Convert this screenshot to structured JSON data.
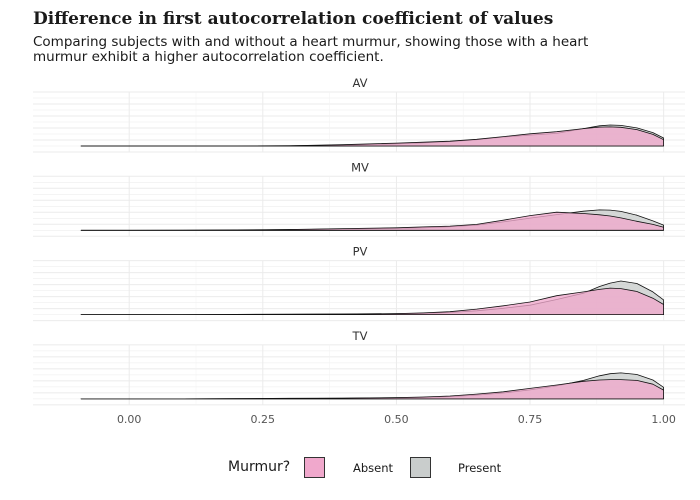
{
  "title": "Difference in first autocorrelation coefficient of values",
  "subtitle": "Comparing subjects with and without a heart murmur, showing those with a heart murmur exhibit a higher autocorrelation coefficient.",
  "legend": {
    "title": "Murmur?",
    "items": [
      {
        "label": "Absent",
        "color": "#f0a8cc"
      },
      {
        "label": "Present",
        "color": "#c9cdcc"
      }
    ]
  },
  "chart_data": {
    "type": "area",
    "chart_kind": "faceted density ridgeline",
    "x_ticks": [
      0.0,
      0.25,
      0.5,
      0.75,
      1.0
    ],
    "x_tick_labels": [
      "0.00",
      "0.25",
      "0.50",
      "0.75",
      "1.00"
    ],
    "xlim": [
      -0.18,
      1.04
    ],
    "grid": true,
    "legend_position": "bottom",
    "series_styles": [
      {
        "name": "Absent",
        "color": "#f0a8cc"
      },
      {
        "name": "Present",
        "color": "#c9cdcc"
      }
    ],
    "x": [
      -0.09,
      0.0,
      0.1,
      0.2,
      0.3,
      0.4,
      0.5,
      0.55,
      0.6,
      0.65,
      0.7,
      0.75,
      0.8,
      0.85,
      0.88,
      0.9,
      0.92,
      0.95,
      0.98,
      1.0
    ],
    "panels": [
      {
        "label": "AV",
        "Absent": [
          0.0,
          0.0,
          0.0,
          0.0,
          0.01,
          0.06,
          0.14,
          0.18,
          0.23,
          0.32,
          0.45,
          0.58,
          0.68,
          0.83,
          0.9,
          0.91,
          0.89,
          0.78,
          0.55,
          0.3
        ],
        "Present": [
          0.0,
          0.0,
          0.0,
          0.0,
          0.01,
          0.04,
          0.1,
          0.15,
          0.21,
          0.3,
          0.43,
          0.52,
          0.6,
          0.83,
          0.96,
          1.0,
          0.98,
          0.86,
          0.64,
          0.38
        ]
      },
      {
        "label": "MV",
        "Absent": [
          0.0,
          0.0,
          0.01,
          0.02,
          0.04,
          0.08,
          0.12,
          0.16,
          0.2,
          0.28,
          0.48,
          0.7,
          0.86,
          0.8,
          0.74,
          0.68,
          0.59,
          0.43,
          0.28,
          0.15
        ],
        "Present": [
          0.0,
          0.0,
          0.0,
          0.01,
          0.03,
          0.06,
          0.1,
          0.12,
          0.17,
          0.25,
          0.4,
          0.58,
          0.75,
          0.91,
          0.97,
          0.96,
          0.9,
          0.72,
          0.45,
          0.25
        ]
      },
      {
        "label": "PV",
        "Absent": [
          0.0,
          0.0,
          0.0,
          0.01,
          0.02,
          0.03,
          0.05,
          0.08,
          0.14,
          0.26,
          0.42,
          0.6,
          0.9,
          1.08,
          1.2,
          1.26,
          1.24,
          1.1,
          0.78,
          0.48
        ],
        "Present": [
          0.0,
          0.0,
          0.0,
          0.0,
          0.01,
          0.02,
          0.04,
          0.06,
          0.1,
          0.18,
          0.3,
          0.45,
          0.72,
          1.02,
          1.34,
          1.5,
          1.6,
          1.48,
          1.08,
          0.7
        ]
      },
      {
        "label": "TV",
        "Absent": [
          0.0,
          0.0,
          0.0,
          0.01,
          0.03,
          0.04,
          0.06,
          0.09,
          0.14,
          0.23,
          0.34,
          0.5,
          0.66,
          0.84,
          0.9,
          0.92,
          0.92,
          0.88,
          0.7,
          0.42
        ],
        "Present": [
          0.0,
          0.0,
          0.0,
          0.01,
          0.02,
          0.03,
          0.05,
          0.07,
          0.11,
          0.18,
          0.28,
          0.43,
          0.62,
          0.88,
          1.1,
          1.2,
          1.24,
          1.16,
          0.9,
          0.55
        ]
      }
    ]
  }
}
